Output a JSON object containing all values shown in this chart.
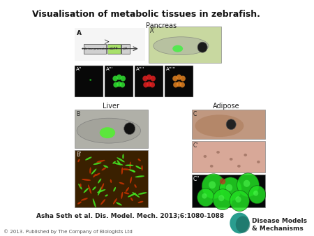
{
  "title": "Visualisation of metabolic tissues in zebrafish.",
  "citation": "Asha Seth et al. Dis. Model. Mech. 2013;6:1080-1088",
  "copyright": "© 2013. Published by The Company of Biologists Ltd",
  "background_color": "#ffffff",
  "title_fontsize": 9,
  "citation_fontsize": 6.5,
  "copyright_fontsize": 5,
  "label_pancreas": "Pancreas",
  "label_liver": "Liver",
  "label_adipose": "Adipose",
  "label_A": "A",
  "label_Ap": "A'",
  "label_App": "A''",
  "label_Appp": "A'''",
  "label_Apppp": "A''''",
  "label_Appppp": "A'''''",
  "label_B": "B",
  "label_Bp": "B'",
  "label_C": "C",
  "label_Cp": "C'",
  "label_Cpp": "C''"
}
